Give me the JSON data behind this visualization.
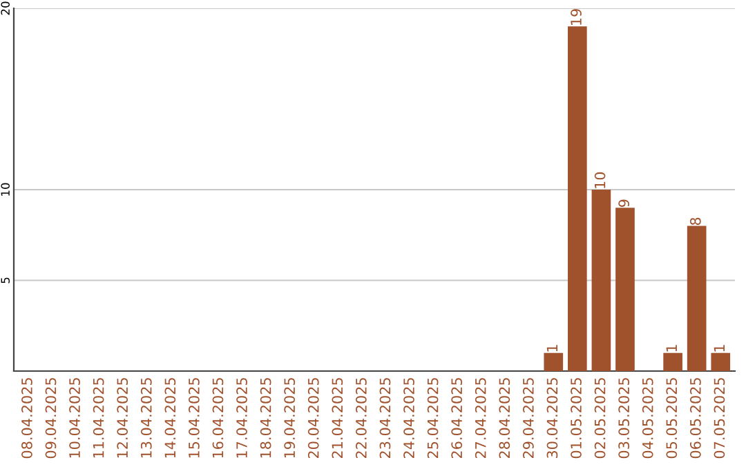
{
  "chart_data": {
    "type": "bar",
    "categories": [
      "08.04.2025",
      "09.04.2025",
      "10.04.2025",
      "11.04.2025",
      "12.04.2025",
      "13.04.2025",
      "14.04.2025",
      "15.04.2025",
      "16.04.2025",
      "17.04.2025",
      "18.04.2025",
      "19.04.2025",
      "20.04.2025",
      "21.04.2025",
      "22.04.2025",
      "23.04.2025",
      "24.04.2025",
      "25.04.2025",
      "26.04.2025",
      "27.04.2025",
      "28.04.2025",
      "29.04.2025",
      "30.04.2025",
      "01.05.2025",
      "02.05.2025",
      "03.05.2025",
      "04.05.2025",
      "05.05.2025",
      "06.05.2025",
      "07.05.2025"
    ],
    "values": [
      0,
      0,
      0,
      0,
      0,
      0,
      0,
      0,
      0,
      0,
      0,
      0,
      0,
      0,
      0,
      0,
      0,
      0,
      0,
      0,
      0,
      0,
      1,
      19,
      10,
      9,
      0,
      1,
      8,
      1
    ],
    "value_labels": [
      null,
      null,
      null,
      null,
      null,
      null,
      null,
      null,
      null,
      null,
      null,
      null,
      null,
      null,
      null,
      null,
      null,
      null,
      null,
      null,
      null,
      null,
      "1",
      "19",
      "10",
      "9",
      null,
      "1",
      "8",
      "1"
    ],
    "color": "#a0522d",
    "ylim": [
      0,
      20
    ],
    "yticks": [
      5,
      10,
      20
    ],
    "grid": "y"
  }
}
